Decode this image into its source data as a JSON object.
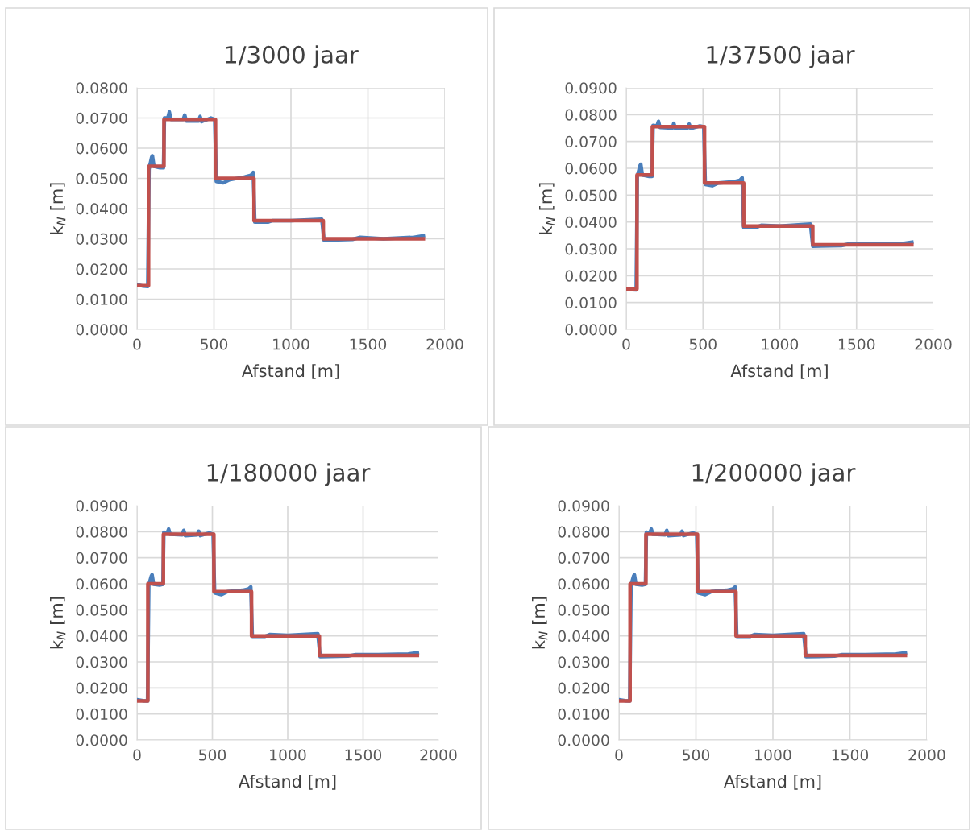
{
  "chart_data": [
    {
      "type": "line",
      "title": "1/3000 jaar",
      "xlabel": "Afstand [m]",
      "ylabel": "k$_{N}$ [m]",
      "grid": true,
      "xlim": [
        0,
        2000
      ],
      "xticks": [
        0,
        500,
        1000,
        1500,
        2000
      ],
      "ylim": [
        0,
        0.08
      ],
      "yticks": [
        {
          "value": 0,
          "label": "0.0000"
        },
        {
          "value": 0.01,
          "label": "0.0100"
        },
        {
          "value": 0.02,
          "label": "0.0200"
        },
        {
          "value": 0.03,
          "label": "0.0300"
        },
        {
          "value": 0.04,
          "label": "0.0400"
        },
        {
          "value": 0.05,
          "label": "0.0500"
        },
        {
          "value": 0.06,
          "label": "0.0600"
        },
        {
          "value": 0.07,
          "label": "0.0700"
        },
        {
          "value": 0.08,
          "label": "0.0800"
        }
      ],
      "series": [
        {
          "type": "line",
          "color": "#4a7ebb",
          "x": [
            0,
            40,
            70,
            78,
            95,
            100,
            110,
            150,
            172,
            178,
            200,
            210,
            220,
            300,
            310,
            320,
            400,
            410,
            420,
            480,
            505,
            515,
            560,
            600,
            700,
            740,
            755,
            765,
            850,
            880,
            1000,
            1200,
            1215,
            1400,
            1450,
            1600,
            1800,
            1860
          ],
          "values": [
            0.0148,
            0.0143,
            0.0142,
            0.053,
            0.057,
            0.0575,
            0.054,
            0.0535,
            0.0535,
            0.07,
            0.07,
            0.072,
            0.0695,
            0.0695,
            0.071,
            0.069,
            0.069,
            0.0705,
            0.0688,
            0.07,
            0.0695,
            0.049,
            0.0485,
            0.0495,
            0.0505,
            0.051,
            0.052,
            0.0355,
            0.0355,
            0.036,
            0.036,
            0.0365,
            0.0295,
            0.0298,
            0.0305,
            0.03,
            0.0305,
            0.031
          ]
        },
        {
          "type": "step",
          "color": "#c0504d",
          "x": [
            0,
            75,
            175,
            510,
            760,
            1210,
            1860
          ],
          "values": [
            0.0145,
            0.054,
            0.0695,
            0.05,
            0.036,
            0.03,
            0.03
          ]
        }
      ]
    },
    {
      "type": "line",
      "title": "1/37500 jaar",
      "xlabel": "Afstand [m]",
      "ylabel": "k$_{N}$ [m]",
      "grid": true,
      "xlim": [
        0,
        2000
      ],
      "xticks": [
        0,
        500,
        1000,
        1500,
        2000
      ],
      "ylim": [
        0,
        0.09
      ],
      "yticks": [
        {
          "value": 0,
          "label": "0.0000"
        },
        {
          "value": 0.01,
          "label": "0.0100"
        },
        {
          "value": 0.02,
          "label": "0.0200"
        },
        {
          "value": 0.03,
          "label": "0.0300"
        },
        {
          "value": 0.04,
          "label": "0.0400"
        },
        {
          "value": 0.05,
          "label": "0.0500"
        },
        {
          "value": 0.06,
          "label": "0.0600"
        },
        {
          "value": 0.07,
          "label": "0.0700"
        },
        {
          "value": 0.08,
          "label": "0.0800"
        },
        {
          "value": 0.09,
          "label": "0.0900"
        }
      ],
      "series": [
        {
          "type": "line",
          "color": "#4a7ebb",
          "x": [
            0,
            40,
            65,
            72,
            90,
            95,
            105,
            150,
            168,
            175,
            200,
            210,
            220,
            300,
            310,
            320,
            400,
            410,
            420,
            480,
            505,
            515,
            560,
            600,
            700,
            740,
            755,
            765,
            850,
            880,
            1000,
            1200,
            1215,
            1400,
            1450,
            1600,
            1800,
            1860
          ],
          "values": [
            0.0152,
            0.0148,
            0.0147,
            0.057,
            0.061,
            0.0615,
            0.0575,
            0.057,
            0.057,
            0.076,
            0.0758,
            0.0775,
            0.0752,
            0.075,
            0.0768,
            0.0748,
            0.075,
            0.0765,
            0.0748,
            0.0758,
            0.0755,
            0.054,
            0.0535,
            0.0545,
            0.055,
            0.0555,
            0.0565,
            0.038,
            0.038,
            0.0388,
            0.0385,
            0.0392,
            0.031,
            0.0312,
            0.0318,
            0.0318,
            0.032,
            0.0325
          ]
        },
        {
          "type": "step",
          "color": "#c0504d",
          "x": [
            0,
            70,
            170,
            510,
            765,
            1215,
            1860
          ],
          "values": [
            0.015,
            0.0575,
            0.0755,
            0.0545,
            0.0385,
            0.0315,
            0.0315
          ]
        }
      ]
    },
    {
      "type": "line",
      "title": "1/180000 jaar",
      "xlabel": "Afstand [m]",
      "ylabel": "k$_{N}$ [m]",
      "grid": true,
      "xlim": [
        0,
        2000
      ],
      "xticks": [
        0,
        500,
        1000,
        1500,
        2000
      ],
      "ylim": [
        0,
        0.09
      ],
      "yticks": [
        {
          "value": 0,
          "label": "0.0000"
        },
        {
          "value": 0.01,
          "label": "0.0100"
        },
        {
          "value": 0.02,
          "label": "0.0200"
        },
        {
          "value": 0.03,
          "label": "0.0300"
        },
        {
          "value": 0.04,
          "label": "0.0400"
        },
        {
          "value": 0.05,
          "label": "0.0500"
        },
        {
          "value": 0.06,
          "label": "0.0600"
        },
        {
          "value": 0.07,
          "label": "0.0700"
        },
        {
          "value": 0.08,
          "label": "0.0800"
        },
        {
          "value": 0.09,
          "label": "0.0900"
        }
      ],
      "series": [
        {
          "type": "line",
          "color": "#4a7ebb",
          "x": [
            0,
            40,
            70,
            78,
            95,
            100,
            110,
            150,
            172,
            178,
            200,
            210,
            220,
            300,
            310,
            320,
            400,
            410,
            420,
            480,
            505,
            515,
            560,
            600,
            700,
            740,
            755,
            765,
            850,
            880,
            1000,
            1200,
            1215,
            1400,
            1450,
            1600,
            1800,
            1860
          ],
          "values": [
            0.0155,
            0.0151,
            0.015,
            0.0595,
            0.063,
            0.0635,
            0.0598,
            0.0595,
            0.0598,
            0.0798,
            0.0795,
            0.081,
            0.079,
            0.0788,
            0.0805,
            0.0785,
            0.0788,
            0.0802,
            0.0785,
            0.0795,
            0.079,
            0.0565,
            0.0558,
            0.057,
            0.0575,
            0.058,
            0.0588,
            0.0398,
            0.0398,
            0.0405,
            0.0402,
            0.0408,
            0.032,
            0.0322,
            0.0328,
            0.0328,
            0.033,
            0.0335
          ]
        },
        {
          "type": "step",
          "color": "#c0504d",
          "x": [
            0,
            72,
            175,
            510,
            760,
            1210,
            1860
          ],
          "values": [
            0.015,
            0.06,
            0.079,
            0.057,
            0.04,
            0.0325,
            0.0325
          ]
        }
      ]
    },
    {
      "type": "line",
      "title": "1/200000 jaar",
      "xlabel": "Afstand [m]",
      "ylabel": "k$_{N}$ [m]",
      "grid": true,
      "xlim": [
        0,
        2000
      ],
      "xticks": [
        0,
        500,
        1000,
        1500,
        2000
      ],
      "ylim": [
        0,
        0.09
      ],
      "yticks": [
        {
          "value": 0,
          "label": "0.0000"
        },
        {
          "value": 0.01,
          "label": "0.0100"
        },
        {
          "value": 0.02,
          "label": "0.0200"
        },
        {
          "value": 0.03,
          "label": "0.0300"
        },
        {
          "value": 0.04,
          "label": "0.0400"
        },
        {
          "value": 0.05,
          "label": "0.0500"
        },
        {
          "value": 0.06,
          "label": "0.0600"
        },
        {
          "value": 0.07,
          "label": "0.0700"
        },
        {
          "value": 0.08,
          "label": "0.0800"
        },
        {
          "value": 0.09,
          "label": "0.0900"
        }
      ],
      "series": [
        {
          "type": "line",
          "color": "#4a7ebb",
          "x": [
            0,
            40,
            70,
            78,
            95,
            100,
            110,
            150,
            172,
            178,
            200,
            210,
            220,
            300,
            310,
            320,
            400,
            410,
            420,
            480,
            505,
            515,
            560,
            600,
            700,
            740,
            755,
            765,
            850,
            880,
            1000,
            1200,
            1215,
            1400,
            1450,
            1600,
            1800,
            1860
          ],
          "values": [
            0.0155,
            0.0151,
            0.015,
            0.0595,
            0.063,
            0.0635,
            0.0598,
            0.0595,
            0.0598,
            0.0798,
            0.0795,
            0.081,
            0.079,
            0.0788,
            0.0805,
            0.0785,
            0.0788,
            0.0802,
            0.0785,
            0.0795,
            0.079,
            0.0565,
            0.0558,
            0.057,
            0.0575,
            0.058,
            0.0588,
            0.0398,
            0.0398,
            0.0405,
            0.0402,
            0.0408,
            0.032,
            0.0322,
            0.0328,
            0.0328,
            0.033,
            0.0335
          ]
        },
        {
          "type": "step",
          "color": "#c0504d",
          "x": [
            0,
            72,
            175,
            510,
            760,
            1210,
            1860
          ],
          "values": [
            0.015,
            0.06,
            0.079,
            0.057,
            0.04,
            0.0325,
            0.0325
          ]
        }
      ]
    }
  ]
}
